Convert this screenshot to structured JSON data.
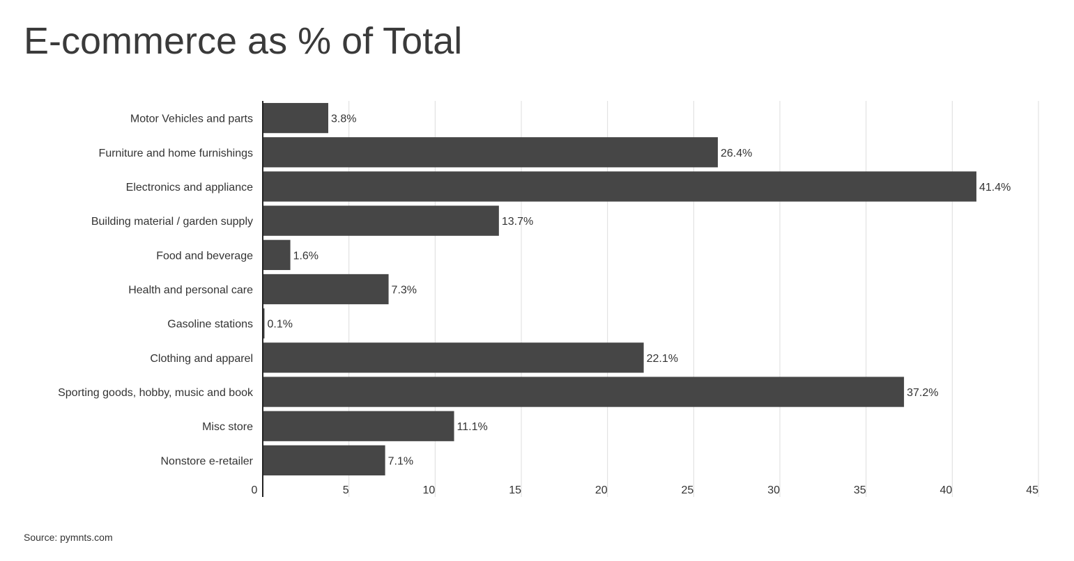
{
  "title": "E-commerce as % of Total",
  "source": "Source: pymnts.com",
  "colors": {
    "bar": "#464646",
    "grid": "#dcdcdc",
    "axis": "#222222",
    "text": "#333333"
  },
  "chart_data": {
    "type": "bar",
    "orientation": "horizontal",
    "title": "E-commerce as % of Total",
    "categories": [
      "Motor Vehicles and parts",
      "Furniture and home furnishings",
      "Electronics and appliance",
      "Building material / garden supply",
      "Food and beverage",
      "Health and personal care",
      "Gasoline stations",
      "Clothing and apparel",
      "Sporting goods, hobby, music and book",
      "Misc store",
      "Nonstore e-retailer"
    ],
    "values": [
      3.8,
      26.4,
      41.4,
      13.7,
      1.6,
      7.3,
      0.1,
      22.1,
      37.2,
      11.1,
      7.1
    ],
    "data_labels": [
      "3.8%",
      "26.4%",
      "41.4%",
      "13.7%",
      "1.6%",
      "7.3%",
      "0.1%",
      "22.1%",
      "37.2%",
      "11.1%",
      "7.1%"
    ],
    "xlim": [
      0,
      45
    ],
    "x_ticks": [
      0,
      5,
      10,
      15,
      20,
      25,
      30,
      35,
      40,
      45
    ],
    "xlabel": "",
    "ylabel": "",
    "grid": "vertical",
    "legend": "none"
  }
}
